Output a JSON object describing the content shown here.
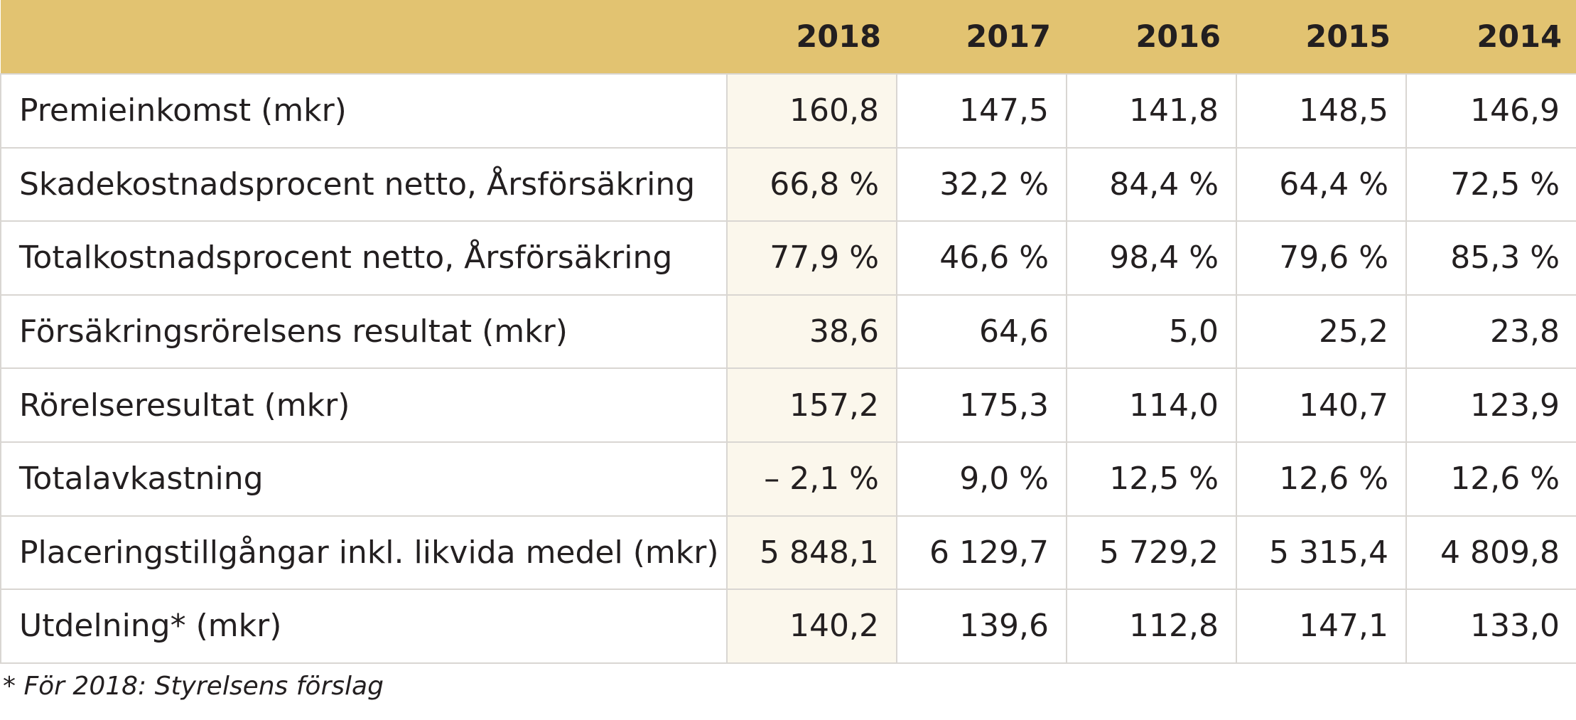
{
  "table": {
    "header": {
      "label": "",
      "years": [
        "2018",
        "2017",
        "2016",
        "2015",
        "2014"
      ]
    },
    "rows": [
      {
        "label": "Premieinkomst (mkr)",
        "values": [
          "160,8",
          "147,5",
          "141,8",
          "148,5",
          "146,9"
        ]
      },
      {
        "label": "Skadekostnadsprocent netto, Årsförsäkring",
        "values": [
          "66,8 %",
          "32,2 %",
          "84,4 %",
          "64,4 %",
          "72,5 %"
        ]
      },
      {
        "label": "Totalkostnadsprocent netto, Årsförsäkring",
        "values": [
          "77,9 %",
          "46,6 %",
          "98,4 %",
          "79,6 %",
          "85,3 %"
        ]
      },
      {
        "label": "Försäkringsrörelsens resultat (mkr)",
        "values": [
          "38,6",
          "64,6",
          "5,0",
          "25,2",
          "23,8"
        ]
      },
      {
        "label": "Rörelseresultat (mkr)",
        "values": [
          "157,2",
          "175,3",
          "114,0",
          "140,7",
          "123,9"
        ]
      },
      {
        "label": "Totalavkastning",
        "values": [
          "– 2,1 %",
          "9,0 %",
          "12,5 %",
          "12,6 %",
          "12,6 %"
        ]
      },
      {
        "label": "Placeringstillgångar inkl. likvida medel (mkr)",
        "values": [
          "5 848,1",
          "6 129,7",
          "5 729,2",
          "5 315,4",
          "4 809,8"
        ]
      },
      {
        "label": "Utdelning* (mkr)",
        "values": [
          "140,2",
          "139,6",
          "112,8",
          "147,1",
          "133,0"
        ]
      }
    ]
  },
  "footnote": "* För 2018: Styrelsens förslag",
  "colors": {
    "header_bg": "#e2c371",
    "highlight_col_bg": "#fbf7ec",
    "border": "#d9d6d2",
    "text": "#231f20"
  }
}
